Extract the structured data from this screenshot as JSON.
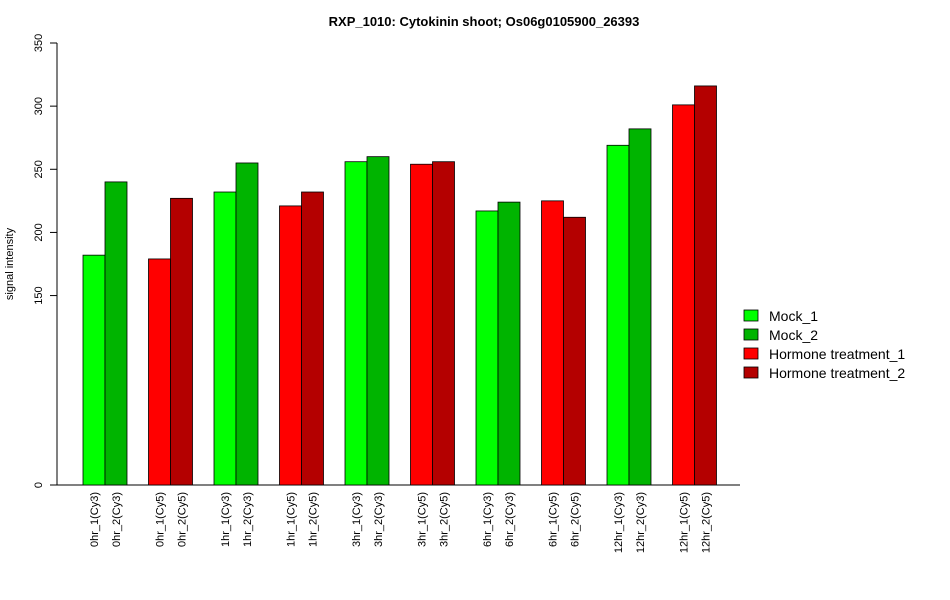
{
  "chart_data": {
    "type": "bar",
    "title": "RXP_1010: Cytokinin shoot; Os06g0105900_26393",
    "xlabel": "",
    "ylabel": "signal intensity",
    "y_ticks": [
      "0",
      "150",
      "200",
      "250",
      "300",
      "350"
    ],
    "grid": false,
    "legend_position": "right",
    "categories": [
      "0hr_1(Cy3)",
      "0hr_2(Cy3)",
      "0hr_1(Cy5)",
      "0hr_2(Cy5)",
      "1hr_1(Cy3)",
      "1hr_2(Cy3)",
      "1hr_1(Cy5)",
      "1hr_2(Cy5)",
      "3hr_1(Cy3)",
      "3hr_2(Cy3)",
      "3hr_1(Cy5)",
      "3hr_2(Cy5)",
      "6hr_1(Cy3)",
      "6hr_2(Cy3)",
      "6hr_1(Cy5)",
      "6hr_2(Cy5)",
      "12hr_1(Cy3)",
      "12hr_2(Cy3)",
      "12hr_1(Cy5)",
      "12hr_2(Cy5)"
    ],
    "values": [
      182,
      240,
      179,
      227,
      232,
      255,
      221,
      232,
      256,
      260,
      254,
      256,
      217,
      224,
      225,
      212,
      269,
      282,
      301,
      316
    ],
    "bar_series": [
      0,
      1,
      2,
      3,
      0,
      1,
      2,
      3,
      0,
      1,
      2,
      3,
      0,
      1,
      2,
      3,
      0,
      1,
      2,
      3
    ],
    "series": [
      {
        "name": "Mock_1",
        "color": "#00ff00"
      },
      {
        "name": "Mock_2",
        "color": "#00b400"
      },
      {
        "name": "Hormone treatment_1",
        "color": "#ff0000"
      },
      {
        "name": "Hormone treatment_2",
        "color": "#b40000"
      }
    ]
  }
}
